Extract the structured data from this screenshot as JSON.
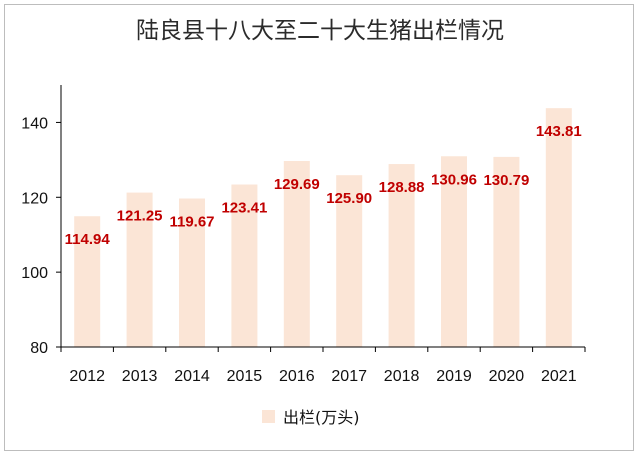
{
  "chart_data": {
    "type": "bar",
    "title": "陆良县十八大至二十大生猪出栏情况",
    "categories": [
      "2012",
      "2013",
      "2014",
      "2015",
      "2016",
      "2017",
      "2018",
      "2019",
      "2020",
      "2021"
    ],
    "series": [
      {
        "name": "出栏(万头)",
        "values": [
          114.94,
          121.25,
          119.67,
          123.41,
          129.69,
          125.9,
          128.88,
          130.96,
          130.79,
          143.81
        ],
        "labels": [
          "114.94",
          "121.25",
          "119.67",
          "123.41",
          "129.69",
          "125.90",
          "128.88",
          "130.96",
          "130.79",
          "143.81"
        ]
      }
    ],
    "yticks": [
      "80",
      "100",
      "120",
      "140"
    ],
    "ylim": [
      80,
      150
    ],
    "grid": false,
    "legend_position": "bottom",
    "colors": {
      "bar": "#fbe5d6",
      "label": "#c00000",
      "axis": "#000000"
    }
  }
}
